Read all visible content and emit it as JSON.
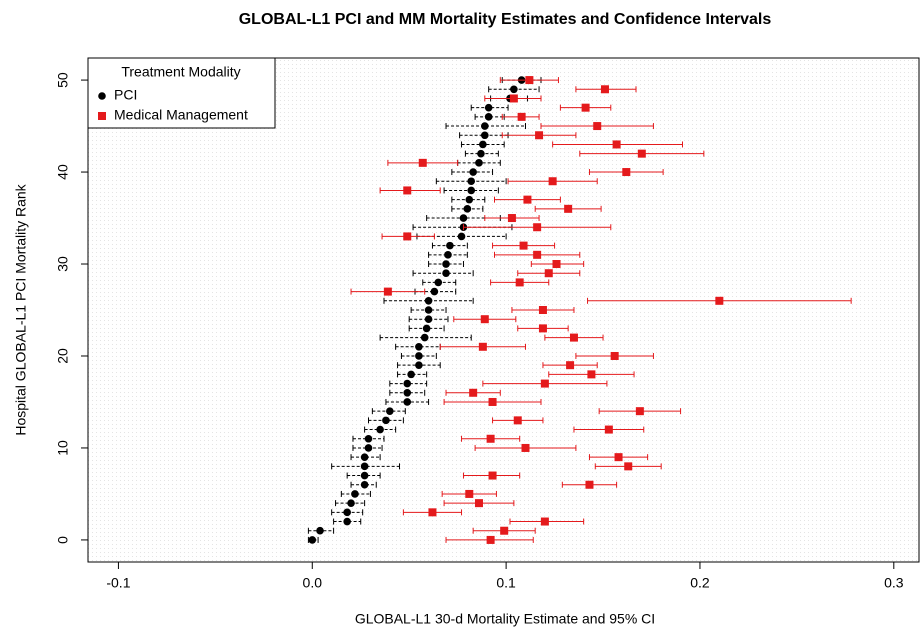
{
  "chart_data": {
    "type": "dot_ci",
    "title": "GLOBAL-L1 PCI and MM Mortality Estimates and Confidence Intervals",
    "x_label": "GLOBAL-L1 30-d Mortality Estimate and 95% CI",
    "y_label": "Hospital GLOBAL-L1 PCI Mortality Rank",
    "legend_title": "Treatment Modality",
    "legend_position": "top-left",
    "xlim": [
      -0.1157,
      0.313
    ],
    "ylim": [
      -2.4,
      52.4
    ],
    "xticks": [
      -0.1,
      {
        "value": 0,
        "label": "0.0"
      },
      0.1,
      0.2,
      0.3
    ],
    "yticks": [
      0,
      10,
      20,
      30,
      40,
      50
    ],
    "y": [
      0,
      1,
      2,
      3,
      4,
      5,
      6,
      7,
      8,
      9,
      10,
      11,
      12,
      13,
      14,
      15,
      16,
      17,
      18,
      19,
      20,
      21,
      22,
      23,
      24,
      25,
      26,
      27,
      28,
      29,
      30,
      31,
      32,
      33,
      34,
      35,
      36,
      37,
      38,
      39,
      40,
      41,
      42,
      43,
      44,
      45,
      46,
      47,
      48,
      49,
      50
    ],
    "series": [
      {
        "name": "PCI",
        "color": "#000000",
        "marker": "circle",
        "dash": true,
        "values": [
          0.0,
          0.004,
          0.018,
          0.018,
          0.02,
          0.022,
          0.027,
          0.027,
          0.027,
          0.027,
          0.029,
          0.029,
          0.035,
          0.038,
          0.04,
          0.049,
          0.049,
          0.049,
          0.051,
          0.055,
          0.055,
          0.055,
          0.058,
          0.059,
          0.06,
          0.06,
          0.06,
          0.063,
          0.065,
          0.069,
          0.069,
          0.07,
          0.071,
          0.077,
          0.078,
          0.078,
          0.08,
          0.081,
          0.082,
          0.082,
          0.083,
          0.086,
          0.087,
          0.088,
          0.089,
          0.089,
          0.091,
          0.091,
          0.102,
          0.104,
          0.108
        ],
        "lower": [
          -0.002,
          -0.002,
          0.011,
          0.01,
          0.012,
          0.015,
          0.02,
          0.018,
          0.01,
          0.02,
          0.021,
          0.021,
          0.027,
          0.029,
          0.031,
          0.038,
          0.04,
          0.04,
          0.044,
          0.044,
          0.046,
          0.043,
          0.035,
          0.05,
          0.05,
          0.051,
          0.037,
          0.053,
          0.057,
          0.052,
          0.06,
          0.06,
          0.062,
          0.054,
          0.052,
          0.059,
          0.072,
          0.072,
          0.068,
          0.064,
          0.072,
          0.075,
          0.079,
          0.077,
          0.076,
          0.069,
          0.084,
          0.082,
          0.092,
          0.091,
          0.098
        ],
        "upper": [
          0.003,
          0.011,
          0.025,
          0.026,
          0.027,
          0.03,
          0.033,
          0.035,
          0.045,
          0.035,
          0.036,
          0.037,
          0.043,
          0.047,
          0.048,
          0.06,
          0.058,
          0.059,
          0.059,
          0.066,
          0.064,
          0.066,
          0.082,
          0.068,
          0.07,
          0.069,
          0.083,
          0.074,
          0.074,
          0.083,
          0.078,
          0.08,
          0.08,
          0.1,
          0.103,
          0.097,
          0.088,
          0.089,
          0.096,
          0.1,
          0.093,
          0.097,
          0.096,
          0.099,
          0.101,
          0.11,
          0.099,
          0.101,
          0.111,
          0.117,
          0.118
        ]
      },
      {
        "name": "Medical Management",
        "color": "#e41a1c",
        "marker": "square",
        "dash": false,
        "values": [
          0.092,
          0.099,
          0.12,
          0.062,
          0.086,
          0.081,
          0.143,
          0.093,
          0.163,
          0.158,
          0.11,
          0.092,
          0.153,
          0.106,
          0.169,
          0.093,
          0.083,
          0.12,
          0.144,
          0.133,
          0.156,
          0.088,
          0.135,
          0.119,
          0.089,
          0.119,
          0.21,
          0.039,
          0.107,
          0.122,
          0.126,
          0.116,
          0.109,
          0.049,
          0.116,
          0.103,
          0.132,
          0.111,
          0.049,
          0.124,
          0.162,
          0.057,
          0.17,
          0.157,
          0.117,
          0.147,
          0.108,
          0.141,
          0.104,
          0.151,
          0.112
        ],
        "lower": [
          0.069,
          0.083,
          0.102,
          0.047,
          0.068,
          0.067,
          0.129,
          0.078,
          0.146,
          0.143,
          0.084,
          0.077,
          0.135,
          0.093,
          0.148,
          0.068,
          0.069,
          0.088,
          0.122,
          0.119,
          0.136,
          0.066,
          0.12,
          0.106,
          0.073,
          0.103,
          0.142,
          0.02,
          0.092,
          0.106,
          0.113,
          0.094,
          0.093,
          0.036,
          0.078,
          0.089,
          0.115,
          0.094,
          0.035,
          0.101,
          0.143,
          0.039,
          0.138,
          0.124,
          0.098,
          0.118,
          0.098,
          0.128,
          0.089,
          0.136,
          0.097
        ],
        "upper": [
          0.114,
          0.115,
          0.14,
          0.077,
          0.104,
          0.095,
          0.157,
          0.107,
          0.18,
          0.173,
          0.136,
          0.107,
          0.171,
          0.119,
          0.19,
          0.118,
          0.097,
          0.152,
          0.166,
          0.147,
          0.176,
          0.11,
          0.15,
          0.132,
          0.105,
          0.135,
          0.278,
          0.058,
          0.122,
          0.138,
          0.14,
          0.138,
          0.125,
          0.063,
          0.154,
          0.117,
          0.149,
          0.128,
          0.066,
          0.147,
          0.181,
          0.075,
          0.202,
          0.191,
          0.136,
          0.176,
          0.117,
          0.154,
          0.118,
          0.167,
          0.127
        ]
      }
    ]
  }
}
